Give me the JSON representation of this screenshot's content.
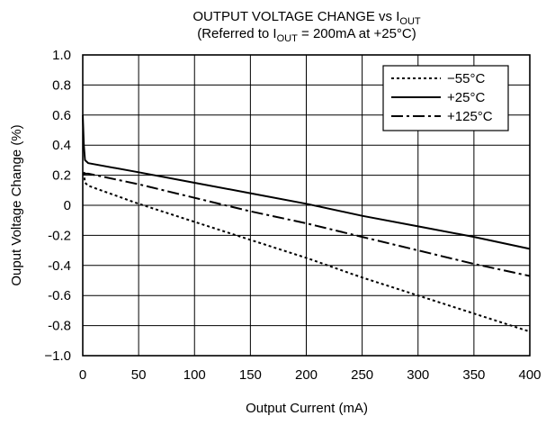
{
  "chart_data": {
    "type": "line",
    "title": "OUTPUT VOLTAGE CHANGE vs I",
    "title_sub": "OUT",
    "subtitle_parts": [
      "(Referred to I",
      "OUT",
      " = 200mA at +25°C)"
    ],
    "xlabel": "Output Current (mA)",
    "ylabel": "Ouput Voltage Change (%)",
    "xlim": [
      0,
      400
    ],
    "ylim": [
      -1.0,
      1.0
    ],
    "x_ticks": [
      0,
      50,
      100,
      150,
      200,
      250,
      300,
      350,
      400
    ],
    "x_tick_labels": [
      "0",
      "50",
      "100",
      "150",
      "200",
      "250",
      "300",
      "350",
      "400"
    ],
    "y_ticks": [
      1.0,
      0.8,
      0.6,
      0.4,
      0.2,
      0,
      -0.2,
      -0.4,
      -0.6,
      -0.8,
      -1.0
    ],
    "y_tick_labels": [
      "1.0",
      "0.8",
      "0.6",
      "0.4",
      "0.2",
      "0",
      "-0.2",
      "-0.4",
      "-0.6",
      "-0.8",
      "−1.0"
    ],
    "grid": true,
    "legend_position": "top-right",
    "series": [
      {
        "name": "−55°C",
        "style": "dotted",
        "x": [
          1,
          2,
          5,
          50,
          100,
          150,
          200,
          250,
          300,
          350,
          400
        ],
        "y": [
          0.22,
          0.15,
          0.13,
          0.01,
          -0.11,
          -0.23,
          -0.35,
          -0.48,
          -0.6,
          -0.72,
          -0.84
        ]
      },
      {
        "name": "+25°C",
        "style": "solid",
        "x": [
          0,
          1,
          2,
          5,
          50,
          100,
          150,
          200,
          250,
          300,
          350,
          400
        ],
        "y": [
          0.6,
          0.4,
          0.3,
          0.28,
          0.22,
          0.15,
          0.08,
          0.01,
          -0.07,
          -0.14,
          -0.21,
          -0.29
        ]
      },
      {
        "name": "+125°C",
        "style": "dashdot",
        "x": [
          1,
          2,
          5,
          50,
          100,
          150,
          200,
          250,
          300,
          350,
          400
        ],
        "y": [
          0.22,
          0.21,
          0.21,
          0.14,
          0.05,
          -0.04,
          -0.12,
          -0.21,
          -0.3,
          -0.39,
          -0.47
        ]
      }
    ]
  }
}
